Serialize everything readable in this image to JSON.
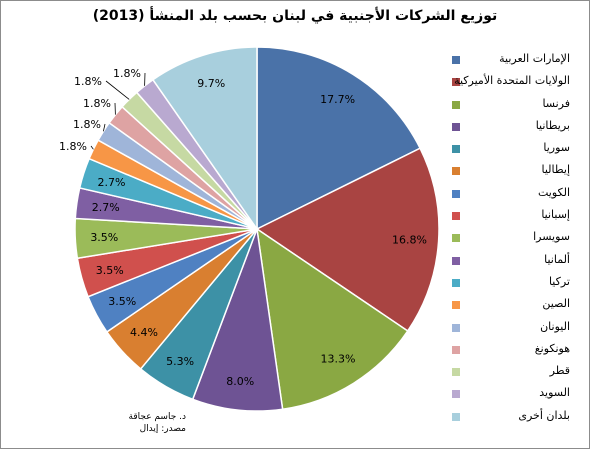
{
  "chart_data": {
    "type": "pie",
    "title": "توزيع الشركات الأجنبية في لبنان بحسب بلد المنشأ (2013)",
    "slices": [
      {
        "label": "الإمارات العربية",
        "value": 17.7,
        "display": "17.7%",
        "color": "#4a72a8"
      },
      {
        "label": "الولايات المتحدة الأميركية",
        "value": 16.8,
        "display": "16.8%",
        "color": "#a94442"
      },
      {
        "label": "فرنسا",
        "value": 13.3,
        "display": "13.3%",
        "color": "#8aa843"
      },
      {
        "label": "بريطانيا",
        "value": 8.0,
        "display": "8.0%",
        "color": "#6e5394"
      },
      {
        "label": "سوريا",
        "value": 5.3,
        "display": "5.3%",
        "color": "#3d91a6"
      },
      {
        "label": "إيطاليا",
        "value": 4.4,
        "display": "4.4%",
        "color": "#d97f30"
      },
      {
        "label": "الكويت",
        "value": 3.5,
        "display": "3.5%",
        "color": "#4f81c2"
      },
      {
        "label": "إسبانيا",
        "value": 3.5,
        "display": "3.5%",
        "color": "#d0504d"
      },
      {
        "label": "سويسرا",
        "value": 3.5,
        "display": "3.5%",
        "color": "#9bbb59"
      },
      {
        "label": "ألمانيا",
        "value": 2.7,
        "display": "2.7%",
        "color": "#7f5fa3"
      },
      {
        "label": "تركيا",
        "value": 2.7,
        "display": "2.7%",
        "color": "#4bacc6"
      },
      {
        "label": "الصين",
        "value": 1.8,
        "display": "1.8%",
        "color": "#f79646"
      },
      {
        "label": "اليونان",
        "value": 1.8,
        "display": "1.8%",
        "color": "#9fb5d9"
      },
      {
        "label": "هونكونغ",
        "value": 1.8,
        "display": "1.8%",
        "color": "#dea3a3"
      },
      {
        "label": "قطر",
        "value": 1.8,
        "display": "1.8%",
        "color": "#c6d9a3"
      },
      {
        "label": "السويد",
        "value": 1.8,
        "display": "1.8%",
        "color": "#b9a9d0"
      },
      {
        "label": "بلدان أخرى",
        "value": 9.7,
        "display": "9.7%",
        "color": "#a8cfdd"
      }
    ],
    "legend_position": "right"
  },
  "source_lines": [
    "د. جاسم عجاقة",
    "مصدر: إيدال"
  ]
}
